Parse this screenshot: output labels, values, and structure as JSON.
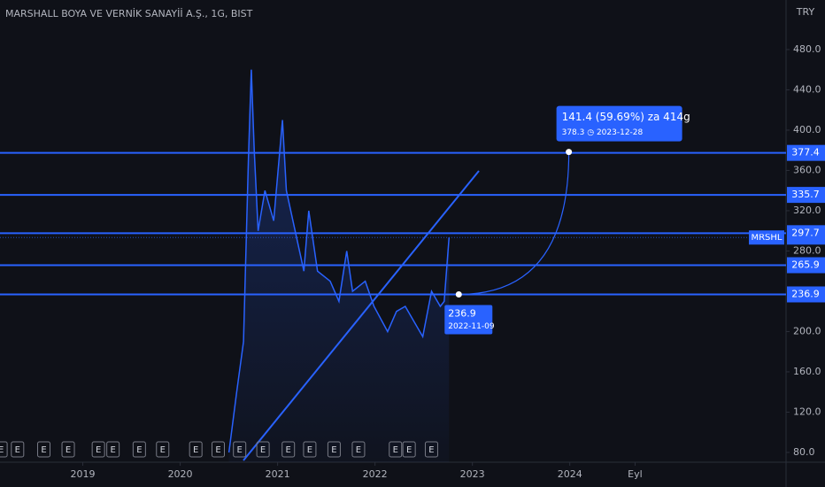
{
  "chart_data": {
    "type": "line",
    "title": "MARSHALL BOYA VE VERNİK SANAYİİ A.Ş., 1G, BIST",
    "currency": "TRY",
    "x": [
      2020.5,
      2020.58,
      2020.65,
      2020.7,
      2020.73,
      2020.76,
      2020.8,
      2020.87,
      2020.96,
      2021.05,
      2021.09,
      2021.18,
      2021.27,
      2021.32,
      2021.41,
      2021.54,
      2021.63,
      2021.71,
      2021.77,
      2021.9,
      2021.99,
      2022.13,
      2022.22,
      2022.31,
      2022.4,
      2022.49,
      2022.58,
      2022.67,
      2022.71,
      2022.76
    ],
    "series": [
      {
        "name": "MRSHL",
        "color": "#2962ff",
        "values": [
          80,
          140,
          190,
          370,
          460,
          380,
          300,
          340,
          310,
          410,
          340,
          300,
          260,
          320,
          260,
          250,
          230,
          280,
          240,
          250,
          225,
          200,
          220,
          225,
          210,
          195,
          240,
          225,
          230,
          293.4
        ]
      }
    ],
    "xlim": [
      2018.15,
      2026.22
    ],
    "xticks": [
      2019,
      2020,
      2021,
      2022,
      2023,
      2024,
      {
        "value": 2024.67,
        "label": "Eyl"
      }
    ],
    "ylim": [
      70.3,
      529.2
    ],
    "yticks": [
      {
        "value": 80,
        "label": "80.0"
      },
      {
        "value": 120,
        "label": "120.0"
      },
      {
        "value": 160,
        "label": "160.0"
      },
      {
        "value": 200,
        "label": "200.0"
      },
      {
        "value": 280,
        "label": "280.0"
      },
      {
        "value": 320,
        "label": "320.0"
      },
      {
        "value": 360,
        "label": "360.0"
      },
      {
        "value": 400,
        "label": "400.0"
      },
      {
        "value": 440,
        "label": "440.0"
      },
      {
        "value": 480,
        "label": "480.0"
      }
    ],
    "grid": false,
    "levels": [
      377.4,
      335.7,
      297.7,
      265.9,
      236.9
    ],
    "earnings": {
      "label": "E",
      "x": [
        2018.16,
        2018.33,
        2018.6,
        2018.85,
        2019.16,
        2019.31,
        2019.58,
        2019.82,
        2020.16,
        2020.39,
        2020.61,
        2020.85,
        2021.11,
        2021.33,
        2021.58,
        2021.83,
        2022.21,
        2022.35,
        2022.58
      ]
    },
    "projection": {
      "start": {
        "x": 2022.86,
        "y": 236.9,
        "date": "2022-11-09"
      },
      "end": {
        "x": 2023.99,
        "y": 378.3
      },
      "label": "141.4 (59.69%) za 414g",
      "detail": "378.3 ◷ 2023-12-28"
    }
  }
}
